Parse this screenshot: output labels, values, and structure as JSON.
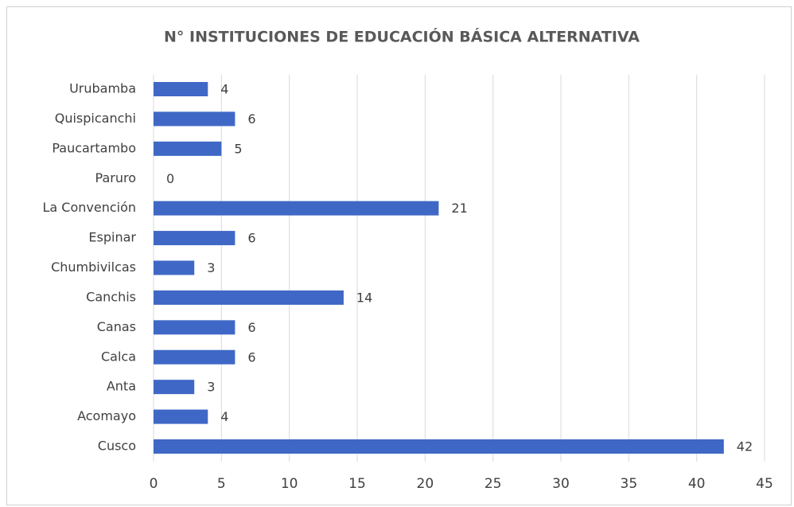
{
  "chart_data": {
    "type": "barh",
    "title": "N° INSTITUCIONES DE EDUCACIÓN BÁSICA ALTERNATIVA",
    "categories": [
      "Urubamba",
      "Quispicanchi",
      "Paucartambo",
      "Paruro",
      "La Convención",
      "Espinar",
      "Chumbivilcas",
      "Canchis",
      "Canas",
      "Calca",
      "Anta",
      "Acomayo",
      "Cusco"
    ],
    "values": [
      4,
      6,
      5,
      0,
      21,
      6,
      3,
      14,
      6,
      6,
      3,
      4,
      42
    ],
    "color": "#3f68c6",
    "xlim": [
      0,
      45
    ],
    "xticks": [
      0,
      5,
      10,
      15,
      20,
      25,
      30,
      35,
      40,
      45
    ],
    "grid": true
  }
}
